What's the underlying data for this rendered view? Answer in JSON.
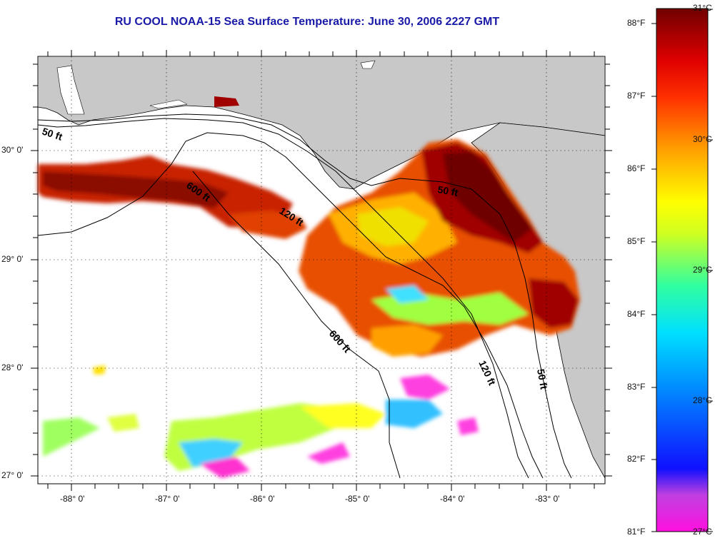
{
  "title": "RU COOL  NOAA-15  Sea Surface Temperature:  June 30, 2006 2227 GMT",
  "lon_labels": [
    "-88° 0'",
    "-87° 0'",
    "-86° 0'",
    "-85° 0'",
    "-84° 0'",
    "-83° 0'"
  ],
  "lat_labels": [
    "30° 0'",
    "29° 0'",
    "28° 0'",
    "27° 0'"
  ],
  "depth_labels": {
    "d50_west": "50 ft",
    "d600_top": "600 ft",
    "d120_mid": "120 ft",
    "d50_east": "50 ft",
    "d600_south": "600 ft",
    "d120_south": "120 ft",
    "d50_south": "50 ft"
  },
  "colorbar": {
    "fahrenheit": [
      "88°F",
      "87°F",
      "86°F",
      "85°F",
      "84°F",
      "83°F",
      "82°F",
      "81°F"
    ],
    "celsius": [
      "31°C",
      "30°C",
      "29°C",
      "28°C",
      "27°C"
    ],
    "colors": [
      "#ff00ff",
      "#b030e0",
      "#1010ff",
      "#0080ff",
      "#00d0ff",
      "#20ff90",
      "#c0ff20",
      "#ffff00",
      "#ffa000",
      "#ff4000",
      "#e00000",
      "#7a0000"
    ]
  },
  "land_color": "#c8c8c8"
}
